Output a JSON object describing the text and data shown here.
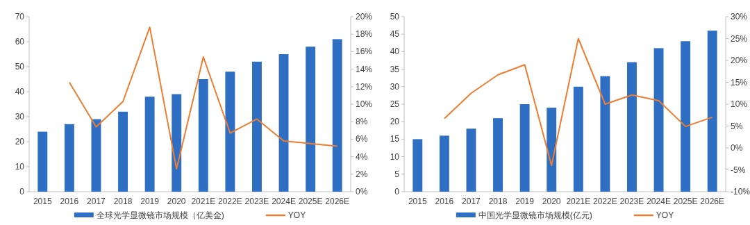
{
  "chart_data": [
    {
      "type": "bar",
      "categories": [
        "2015",
        "2016",
        "2017",
        "2018",
        "2019",
        "2020",
        "2021E",
        "2022E",
        "2023E",
        "2024E",
        "2025E",
        "2026E"
      ],
      "series": [
        {
          "name": "全球光学显微镜市场规模（亿美金)",
          "color": "#2f6fc3",
          "values": [
            24,
            27,
            29,
            32,
            38,
            39,
            45,
            48,
            52,
            55,
            58,
            61
          ]
        },
        {
          "name": "YOY",
          "type": "line",
          "axis": "y2",
          "color": "#ed7d31",
          "values": [
            null,
            12.5,
            7.4,
            10.3,
            18.8,
            2.6,
            15.4,
            6.7,
            8.3,
            5.8,
            5.5,
            5.2
          ]
        }
      ],
      "ylim": [
        0,
        70
      ],
      "yticks": [
        0,
        10,
        20,
        30,
        40,
        50,
        60,
        70
      ],
      "y2lim": [
        0,
        20
      ],
      "y2ticks": [
        {
          "value": 0,
          "label": "0%"
        },
        {
          "value": 2,
          "label": "2%"
        },
        {
          "value": 4,
          "label": "4%"
        },
        {
          "value": 6,
          "label": "6%"
        },
        {
          "value": 8,
          "label": "8%"
        },
        {
          "value": 10,
          "label": "10%"
        },
        {
          "value": 12,
          "label": "12%"
        },
        {
          "value": 14,
          "label": "14%"
        },
        {
          "value": 16,
          "label": "16%"
        },
        {
          "value": 18,
          "label": "18%"
        },
        {
          "value": 20,
          "label": "20%"
        }
      ],
      "legend": "bottom",
      "grid": false
    },
    {
      "type": "bar",
      "categories": [
        "2015",
        "2016",
        "2017",
        "2018",
        "2019",
        "2020",
        "2021E",
        "2022E",
        "2023E",
        "2024E",
        "2025E",
        "2026E"
      ],
      "series": [
        {
          "name": "中国光学显微镜市场规模(亿元)",
          "color": "#2f6fc3",
          "values": [
            15,
            16,
            18,
            21,
            25,
            24,
            30,
            33,
            37,
            41,
            43,
            46
          ]
        },
        {
          "name": "YOY",
          "type": "line",
          "axis": "y2",
          "color": "#ed7d31",
          "values": [
            null,
            6.7,
            12.5,
            16.7,
            19.0,
            -4.0,
            25.0,
            10.0,
            12.1,
            10.8,
            4.9,
            7.0
          ]
        }
      ],
      "ylim": [
        0,
        50
      ],
      "yticks": [
        0,
        5,
        10,
        15,
        20,
        25,
        30,
        35,
        40,
        45,
        50
      ],
      "y2lim": [
        -10,
        30
      ],
      "y2ticks": [
        {
          "value": -10,
          "label": "-10%"
        },
        {
          "value": -5,
          "label": "-5%"
        },
        {
          "value": 0,
          "label": "0%"
        },
        {
          "value": 5,
          "label": "5%"
        },
        {
          "value": 10,
          "label": "10%"
        },
        {
          "value": 15,
          "label": "15%"
        },
        {
          "value": 20,
          "label": "20%"
        },
        {
          "value": 25,
          "label": "25%"
        },
        {
          "value": 30,
          "label": "30%"
        }
      ],
      "legend": "bottom",
      "grid": false
    }
  ]
}
